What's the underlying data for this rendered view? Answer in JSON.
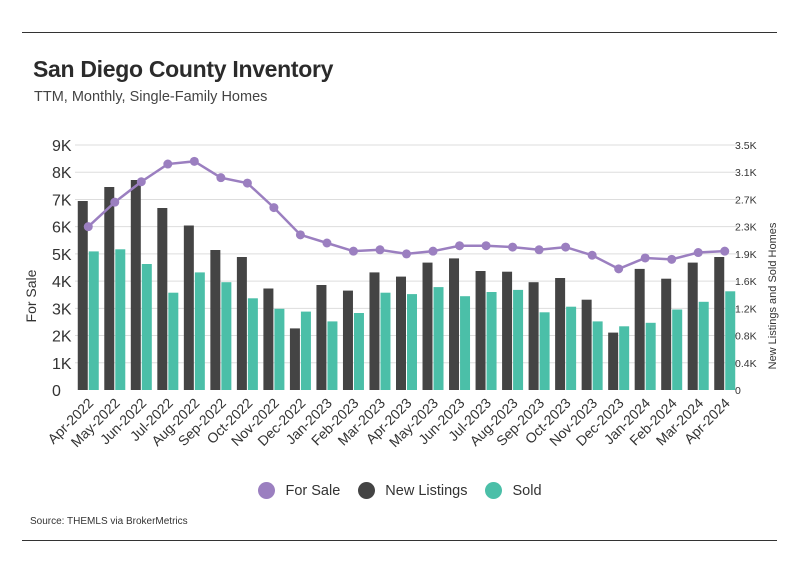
{
  "header": {
    "title": "San Diego County Inventory",
    "subtitle": "TTM, Monthly, Single-Family Homes"
  },
  "footer": {
    "source": "Source:  THEMLS via BrokerMetrics"
  },
  "colors": {
    "for_sale": "#9b7fc0",
    "new_listings": "#444444",
    "sold": "#4bbfa8",
    "grid": "#dddddd"
  },
  "chart_data": {
    "type": "bar",
    "categories": [
      "Apr-2022",
      "May-2022",
      "Jun-2022",
      "Jul-2022",
      "Aug-2022",
      "Sep-2022",
      "Oct-2022",
      "Nov-2022",
      "Dec-2022",
      "Jan-2023",
      "Feb-2023",
      "Mar-2023",
      "Apr-2023",
      "May-2023",
      "Jun-2023",
      "Jul-2023",
      "Aug-2023",
      "Sep-2023",
      "Oct-2023",
      "Nov-2023",
      "Dec-2023",
      "Jan-2024",
      "Feb-2024",
      "Mar-2024",
      "Apr-2024"
    ],
    "series": [
      {
        "name": "For Sale",
        "type": "line",
        "axis": "left",
        "values": [
          6000,
          6900,
          7650,
          8300,
          8400,
          7800,
          7600,
          6700,
          5700,
          5400,
          5100,
          5150,
          5000,
          5100,
          5300,
          5300,
          5250,
          5150,
          5250,
          4950,
          4450,
          4850,
          4800,
          5050,
          5100
        ]
      },
      {
        "name": "New Listings",
        "type": "bar",
        "axis": "right",
        "values": [
          2700,
          2900,
          3000,
          2600,
          2350,
          2000,
          1900,
          1450,
          880,
          1500,
          1420,
          1680,
          1620,
          1820,
          1880,
          1700,
          1690,
          1540,
          1600,
          1290,
          820,
          1730,
          1590,
          1820,
          1900
        ]
      },
      {
        "name": "Sold",
        "type": "bar",
        "axis": "right",
        "values": [
          1980,
          2010,
          1800,
          1390,
          1680,
          1540,
          1310,
          1160,
          1120,
          980,
          1100,
          1390,
          1370,
          1470,
          1340,
          1400,
          1430,
          1110,
          1190,
          980,
          910,
          960,
          1150,
          1260,
          1410
        ]
      }
    ],
    "y_left": {
      "label": "For Sale",
      "ticks": [
        "0",
        "1K",
        "2K",
        "3K",
        "4K",
        "5K",
        "6K",
        "7K",
        "8K",
        "9K"
      ],
      "range": [
        0,
        9000
      ]
    },
    "y_right": {
      "label": "New Listings and Sold Homes",
      "ticks": [
        "0",
        "0.4K",
        "0.8K",
        "1.2K",
        "1.6K",
        "1.9K",
        "2.3K",
        "2.7K",
        "3.1K",
        "3.5K"
      ],
      "range": [
        0,
        3500
      ]
    },
    "grid": true,
    "legend": {
      "position": "bottom",
      "entries": [
        "For Sale",
        "New Listings",
        "Sold"
      ]
    }
  }
}
